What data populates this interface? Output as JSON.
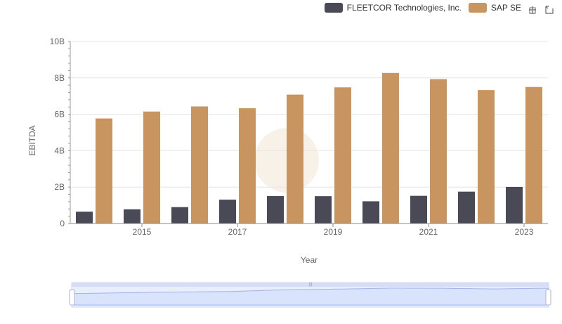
{
  "legend": {
    "items": [
      {
        "name": "FLEETCOR Technologies, Inc.",
        "color": "#4a4a56"
      },
      {
        "name": "SAP SE",
        "color": "#c89460"
      }
    ]
  },
  "toolbox": {
    "zoom_icon": "zoom-in-icon",
    "restore_icon": "restore-icon"
  },
  "chart_data": {
    "type": "bar",
    "xlabel": "Year",
    "ylabel": "EBITDA",
    "ylim": [
      0,
      10000000000
    ],
    "y_ticks": [
      "0",
      "2B",
      "4B",
      "6B",
      "8B",
      "10B"
    ],
    "categories": [
      "2014",
      "2015",
      "2016",
      "2017",
      "2018",
      "2019",
      "2020",
      "2021",
      "2022",
      "2023"
    ],
    "x_tick_labels": [
      "2015",
      "2017",
      "2019",
      "2021",
      "2023"
    ],
    "grid": true,
    "legend_position": "top-right",
    "series": [
      {
        "name": "FLEETCOR Technologies, Inc.",
        "color": "#4a4a56",
        "values": [
          650000000,
          780000000,
          900000000,
          1310000000,
          1510000000,
          1500000000,
          1220000000,
          1520000000,
          1750000000,
          2010000000
        ]
      },
      {
        "name": "SAP SE",
        "color": "#c89460",
        "values": [
          5770000000,
          6150000000,
          6430000000,
          6330000000,
          7080000000,
          7480000000,
          8270000000,
          7930000000,
          7330000000,
          7500000000
        ]
      }
    ]
  }
}
